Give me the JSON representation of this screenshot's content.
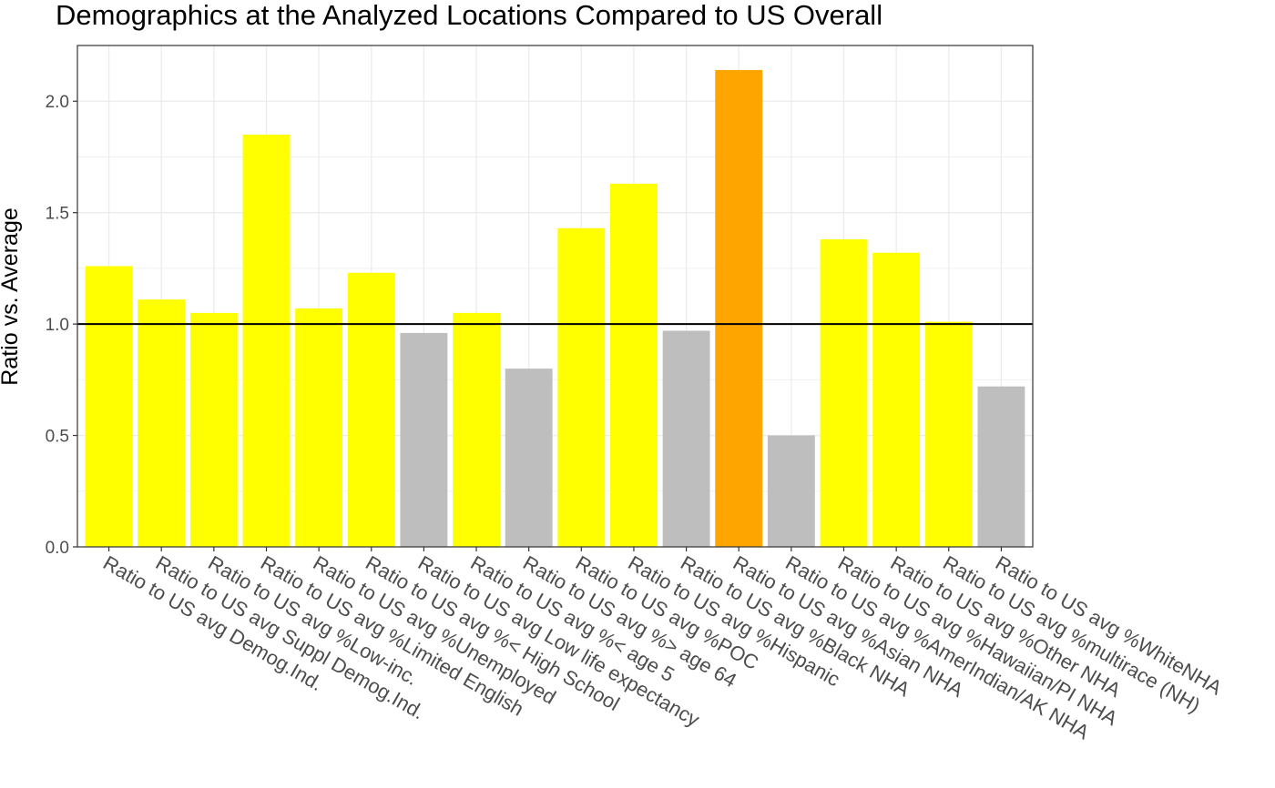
{
  "chart_data": {
    "type": "bar",
    "title": "Demographics at the Analyzed Locations Compared to US Overall",
    "xlabel": "",
    "ylabel": "Ratio vs. Average",
    "ylim": [
      0,
      2.25
    ],
    "yticks": [
      "0.0",
      "0.5",
      "1.0",
      "1.5",
      "2.0"
    ],
    "reference_line": 1.0,
    "grid": true,
    "categories": [
      "Ratio to US avg Demog.Ind.",
      "Ratio to US avg Suppl Demog.Ind.",
      "Ratio to US avg %Low-inc.",
      "Ratio to US avg %Limited English",
      "Ratio to US avg %Unemployed",
      "Ratio to US avg %< High School",
      "Ratio to US avg Low life expectancy",
      "Ratio to US avg %< age 5",
      "Ratio to US avg %> age 64",
      "Ratio to US avg %POC",
      "Ratio to US avg %Hispanic",
      "Ratio to US avg %Black NHA",
      "Ratio to US avg %Asian NHA",
      "Ratio to US avg %AmerIndian/AK NHA",
      "Ratio to US avg %Hawaiian/PI NHA",
      "Ratio to US avg %Other NHA",
      "Ratio to US avg %multirace (NH)",
      "Ratio to US avg %WhiteNHA"
    ],
    "values": [
      1.26,
      1.11,
      1.05,
      1.85,
      1.07,
      1.23,
      0.96,
      1.05,
      0.8,
      1.43,
      1.63,
      0.97,
      2.14,
      0.5,
      1.38,
      1.32,
      1.01,
      0.72
    ],
    "colors": [
      "#FFFF00",
      "#FFFF00",
      "#FFFF00",
      "#FFFF00",
      "#FFFF00",
      "#FFFF00",
      "#BEBEBE",
      "#FFFF00",
      "#BEBEBE",
      "#FFFF00",
      "#FFFF00",
      "#BEBEBE",
      "#FFA500",
      "#BEBEBE",
      "#FFFF00",
      "#FFFF00",
      "#FFFF00",
      "#BEBEBE"
    ]
  }
}
